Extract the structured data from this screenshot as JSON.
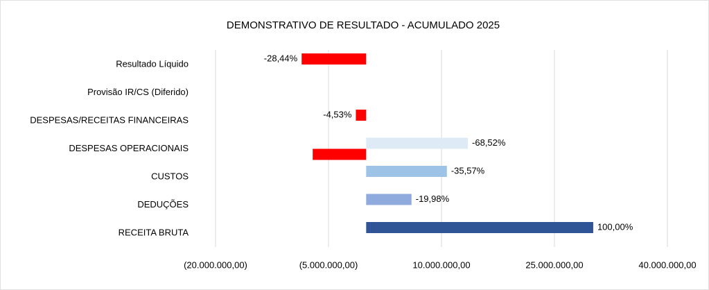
{
  "chart_data": {
    "type": "hbar",
    "title": "DEMONSTRATIVO DE RESULTADO  -  ACUMULADO 2025",
    "categories": [
      "Resultado Líquido",
      "Provisão IR/CS (Diferido)",
      "DESPESAS/RECEITAS FINANCEIRAS",
      "DESPESAS OPERACIONAIS",
      "CUSTOS",
      "DEDUÇÕES",
      "RECEITA BRUTA"
    ],
    "series": [
      {
        "colors": [
          "#ff0000",
          "#ff0000",
          "#ff0000",
          "#deebf7",
          "#9dc3e6",
          "#8faadc",
          "#2f5597"
        ],
        "values": [
          -8570000,
          null,
          -1370000,
          13500000,
          10720000,
          6020000,
          30150000
        ],
        "percent_labels": [
          "-28,44%",
          null,
          "-4,53%",
          "-68,52%",
          "-35,57%",
          "-19,98%",
          "100,00%"
        ]
      },
      {
        "color": "#ff0000",
        "values": [
          null,
          null,
          null,
          -7100000,
          null,
          null,
          null
        ]
      }
    ],
    "xlim": [
      -20000000,
      40000000
    ],
    "xticks": [
      {
        "value": -20000000,
        "label": "(20.000.000,00)"
      },
      {
        "value": -5000000,
        "label": "(5.000.000,00)"
      },
      {
        "value": 10000000,
        "label": "10.000.000,00"
      },
      {
        "value": 25000000,
        "label": "25.000.000,00"
      },
      {
        "value": 40000000,
        "label": "40.000.000,00"
      }
    ],
    "grid": true
  }
}
